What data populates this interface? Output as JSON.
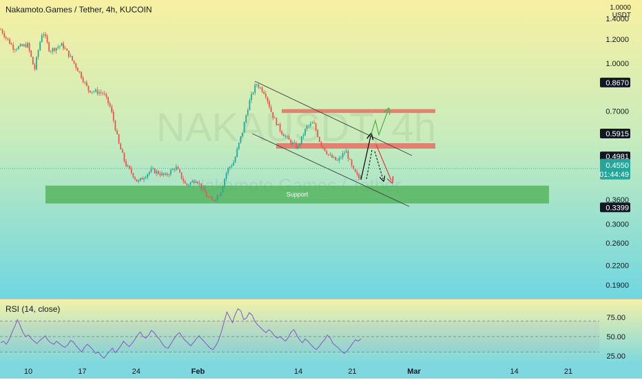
{
  "chart_data": [
    {
      "type": "candlestick",
      "title": "Nakamoto.Games / Tether, 4h, KUCOIN",
      "watermark": "NAKAUSDT, 4h",
      "watermark_sub": "Nakamoto.Games / Tether",
      "y_axis_unit": "USDT",
      "y_scale": "log",
      "y_ticks": [
        "1.4000",
        "1.2000",
        "1.0000",
        "0.7000",
        "0.3600",
        "0.3000",
        "0.2600",
        "0.2200",
        "0.1900"
      ],
      "y_top_label": "1.0000",
      "x_ticks": [
        "10",
        "17",
        "24",
        "Feb",
        "14",
        "21",
        "Mar",
        "14",
        "21"
      ],
      "price_labels": [
        {
          "value": "0.8670",
          "price": 0.867,
          "style": "dark"
        },
        {
          "value": "0.5915",
          "price": 0.5915,
          "style": "dark"
        },
        {
          "value": "0.4981",
          "price": 0.4981,
          "style": "dark"
        },
        {
          "value": "0.3399",
          "price": 0.3399,
          "style": "dark"
        }
      ],
      "last_price": {
        "value": "0.4550",
        "countdown": "01:44:49",
        "price": 0.455
      },
      "zones": [
        {
          "label": "Support",
          "high": 0.4,
          "low": 0.35,
          "color": "#4caf50"
        },
        {
          "label": "",
          "high": 0.71,
          "low": 0.69,
          "color": "#ef5350"
        },
        {
          "label": "",
          "high": 0.55,
          "low": 0.528,
          "color": "#ef5350"
        }
      ],
      "candle_summary": {
        "start": 1.3,
        "peak_jan": 1.25,
        "low_feb": 0.355,
        "peak_feb": 0.86,
        "last": 0.455
      },
      "colors": {
        "up": "#26a69a",
        "down": "#ef5350",
        "support": "#4caf50",
        "resistance": "#ef5350",
        "bg_top": "#f7f0a2",
        "bg_bottom": "#6fd6e0"
      }
    },
    {
      "type": "line",
      "title": "RSI (14, close)",
      "y_ticks": [
        "75.00",
        "50.00",
        "25.00"
      ],
      "levels": [
        70,
        50,
        30
      ],
      "values": [
        42,
        44,
        40,
        46,
        55,
        63,
        72,
        64,
        55,
        50,
        52,
        47,
        44,
        41,
        45,
        48,
        51,
        45,
        42,
        40,
        44,
        41,
        38,
        36,
        39,
        45,
        43,
        38,
        34,
        30,
        36,
        40,
        37,
        33,
        28,
        30,
        25,
        22,
        27,
        31,
        35,
        29,
        33,
        38,
        44,
        40,
        37,
        41,
        46,
        52,
        56,
        50,
        48,
        52,
        58,
        55,
        50,
        46,
        40,
        36,
        35,
        41,
        47,
        52,
        55,
        50,
        45,
        42,
        38,
        42,
        47,
        51,
        47,
        43,
        39,
        35,
        33,
        38,
        45,
        56,
        69,
        82,
        75,
        68,
        79,
        86,
        83,
        72,
        74,
        81,
        78,
        70,
        65,
        62,
        58,
        55,
        59,
        56,
        51,
        48,
        50,
        47,
        44,
        49,
        56,
        59,
        52,
        46,
        42,
        47,
        44,
        40,
        36,
        33,
        37,
        42,
        46,
        52,
        48,
        41,
        38,
        35,
        31,
        28,
        31,
        36,
        41,
        46,
        44,
        47
      ],
      "color": "#7e57c2"
    }
  ]
}
